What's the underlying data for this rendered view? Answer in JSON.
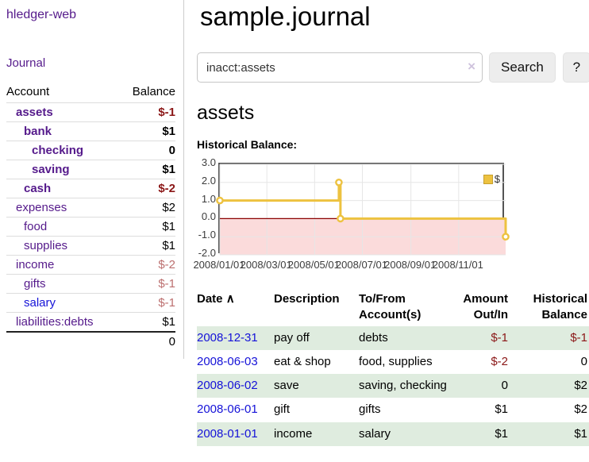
{
  "app": {
    "title": "hledger-web"
  },
  "colors": {
    "link_purple": "#551a8b",
    "link_blue": "#1512d8",
    "negative_strong": "#8b1717",
    "negative_soft": "#bc6f6f",
    "row_stripe_green": "#dfecdf",
    "chart_line": "#edc240",
    "chart_negative_fill": "#fbdbdb",
    "chart_zero_line": "#8b0000",
    "chart_border": "#545454"
  },
  "sidebar": {
    "journal_link": "Journal",
    "table": {
      "account_header": "Account",
      "balance_header": "Balance",
      "rows": [
        {
          "name": "assets",
          "balance": "$-1"
        },
        {
          "name": "bank",
          "balance": "$1"
        },
        {
          "name": "checking",
          "balance": "0"
        },
        {
          "name": "saving",
          "balance": "$1"
        },
        {
          "name": "cash",
          "balance": "$-2"
        },
        {
          "name": "expenses",
          "balance": "$2"
        },
        {
          "name": "food",
          "balance": "$1"
        },
        {
          "name": "supplies",
          "balance": "$1"
        },
        {
          "name": "income",
          "balance": "$-2"
        },
        {
          "name": "gifts",
          "balance": "$-1"
        },
        {
          "name": "salary",
          "balance": "$-1"
        },
        {
          "name": "liabilities:debts",
          "balance": "$1"
        }
      ],
      "total": "0"
    }
  },
  "header": {
    "title": "sample.journal"
  },
  "search": {
    "value": "inacct:assets",
    "clear_icon": "×",
    "button_label": "Search",
    "help_label": "?"
  },
  "account_page": {
    "title": "assets",
    "chart_label": "Historical Balance:"
  },
  "chart_data": {
    "type": "line",
    "step": true,
    "series": [
      {
        "name": "$",
        "points": [
          [
            "2008-01-01",
            1
          ],
          [
            "2008-06-01",
            2
          ],
          [
            "2008-06-03",
            0
          ],
          [
            "2008-12-31",
            -1
          ]
        ]
      }
    ],
    "x_range": [
      "2008-01-01",
      "2008-12-31"
    ],
    "ylim": [
      -2,
      3
    ],
    "y_ticks": [
      3.0,
      2.0,
      1.0,
      0.0,
      -1.0,
      -2.0
    ],
    "y_tick_labels": [
      "3.0",
      "2.0",
      "1.0",
      "0.0",
      "-1.0",
      "-2.0"
    ],
    "x_ticks": [
      {
        "date": "2008-01-01",
        "label": "2008/01/01"
      },
      {
        "date": "2008-03-01",
        "label": "2008/03/01"
      },
      {
        "date": "2008-05-01",
        "label": "2008/05/01"
      },
      {
        "date": "2008-07-01",
        "label": "2008/07/01"
      },
      {
        "date": "2008-09-01",
        "label": "2008/09/01"
      },
      {
        "date": "2008-11-01",
        "label": "2008/11/01"
      }
    ],
    "grid": true,
    "legend_position": "top-right",
    "legend": "$"
  },
  "register": {
    "headers": {
      "date": "Date",
      "sort_indicator": "∧",
      "description": "Description",
      "account": "To/From Account(s)",
      "amount": "Amount Out/In",
      "balance": "Historical Balance"
    },
    "rows": [
      {
        "date": "2008-12-31",
        "description": "pay off",
        "account": "debts",
        "amount": "$-1",
        "balance": "$-1"
      },
      {
        "date": "2008-06-03",
        "description": "eat & shop",
        "account": "food, supplies",
        "amount": "$-2",
        "balance": "0"
      },
      {
        "date": "2008-06-02",
        "description": "save",
        "account": "saving, checking",
        "amount": "0",
        "balance": "$2"
      },
      {
        "date": "2008-06-01",
        "description": "gift",
        "account": "gifts",
        "amount": "$1",
        "balance": "$2"
      },
      {
        "date": "2008-01-01",
        "description": "income",
        "account": "salary",
        "amount": "$1",
        "balance": "$1"
      }
    ]
  }
}
